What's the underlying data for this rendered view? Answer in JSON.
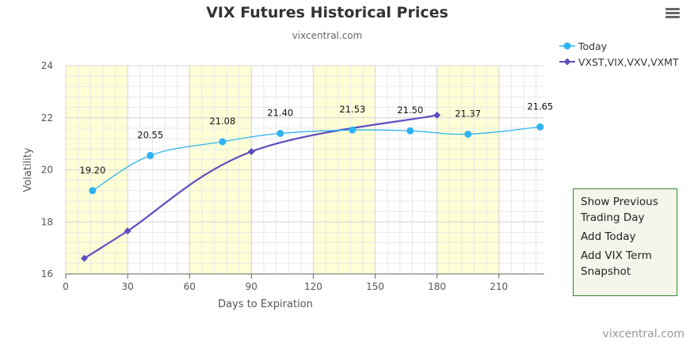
{
  "header": {
    "title": "VIX Futures Historical Prices",
    "subtitle": "vixcentral.com"
  },
  "chart_data": {
    "type": "line",
    "xlabel": "Days to Expiration",
    "ylabel": "Volatility",
    "xlim": [
      0,
      232
    ],
    "ylim": [
      16,
      24
    ],
    "x_ticks": [
      0,
      30,
      60,
      90,
      120,
      150,
      180,
      210
    ],
    "y_ticks": [
      16,
      18,
      20,
      22,
      24
    ],
    "grid": true,
    "legend_placement": "top-right",
    "series": [
      {
        "name": "Today",
        "color": "#2fb3f0",
        "x": [
          13,
          41,
          76,
          104,
          139,
          167,
          195,
          230
        ],
        "y": [
          19.2,
          20.55,
          21.08,
          21.4,
          21.53,
          21.5,
          21.37,
          21.65
        ],
        "labels": [
          "19.20",
          "20.55",
          "21.08",
          "21.40",
          "21.53",
          "21.50",
          "21.37",
          "21.65"
        ]
      },
      {
        "name": "VXST,VIX,VXV,VXMT",
        "color": "#5b4fbf",
        "x": [
          9,
          30,
          90,
          180
        ],
        "y": [
          16.6,
          17.65,
          20.7,
          22.1
        ]
      }
    ],
    "shaded_bands": [
      [
        0,
        30
      ],
      [
        60,
        90
      ],
      [
        120,
        150
      ],
      [
        180,
        210
      ]
    ],
    "band_color": "#ffffd6"
  },
  "menu": {
    "items": [
      "Show Previous Trading Day",
      "Add Today",
      "Add VIX Term Snapshot"
    ]
  },
  "footer": {
    "credit": "vixcentral.com"
  },
  "icons": {
    "menu": "hamburger-menu-icon"
  }
}
